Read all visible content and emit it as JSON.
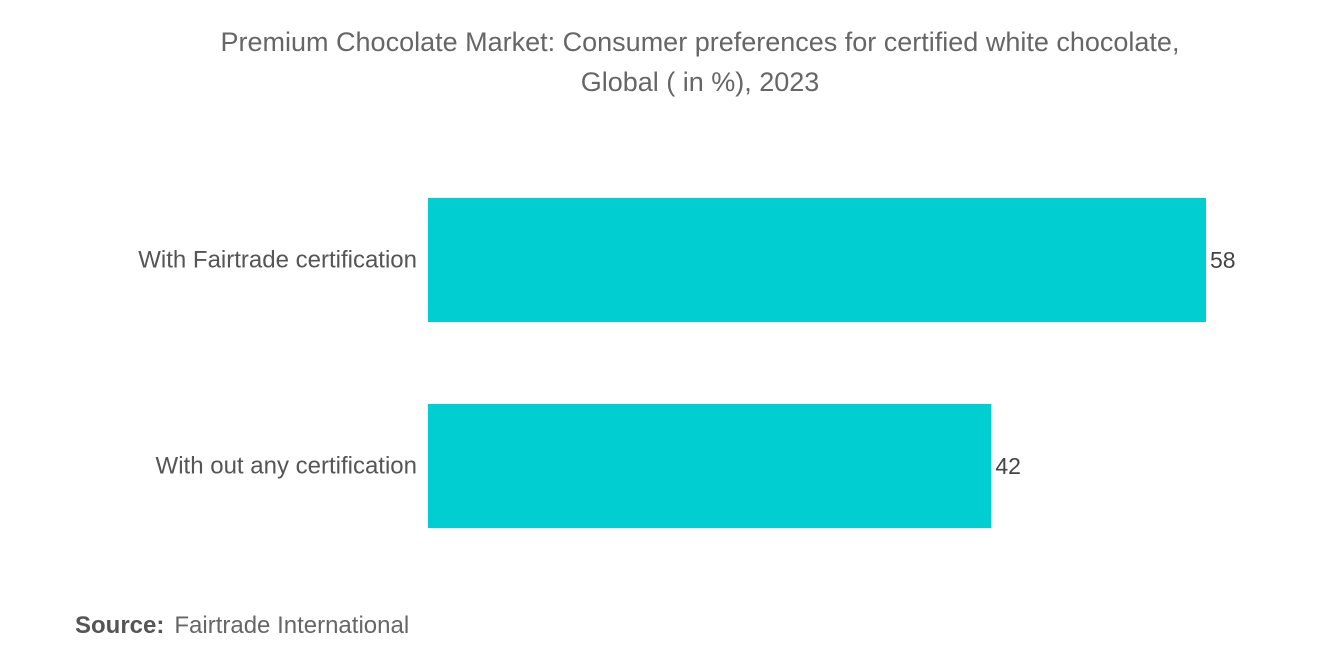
{
  "chart_data": {
    "type": "bar",
    "orientation": "horizontal",
    "title_line1": "Premium Chocolate Market: Consumer preferences for certified white chocolate,",
    "title_line2": "Global ( in %), 2023",
    "categories": [
      "With Fairtrade certification",
      "With out any certification"
    ],
    "values": [
      58,
      42
    ],
    "xlabel": "",
    "ylabel": "",
    "xlim": [
      0,
      58
    ],
    "grid": false,
    "bar_color": "#00CED1"
  },
  "source": {
    "label": "Source:",
    "text": "Fairtrade International"
  }
}
